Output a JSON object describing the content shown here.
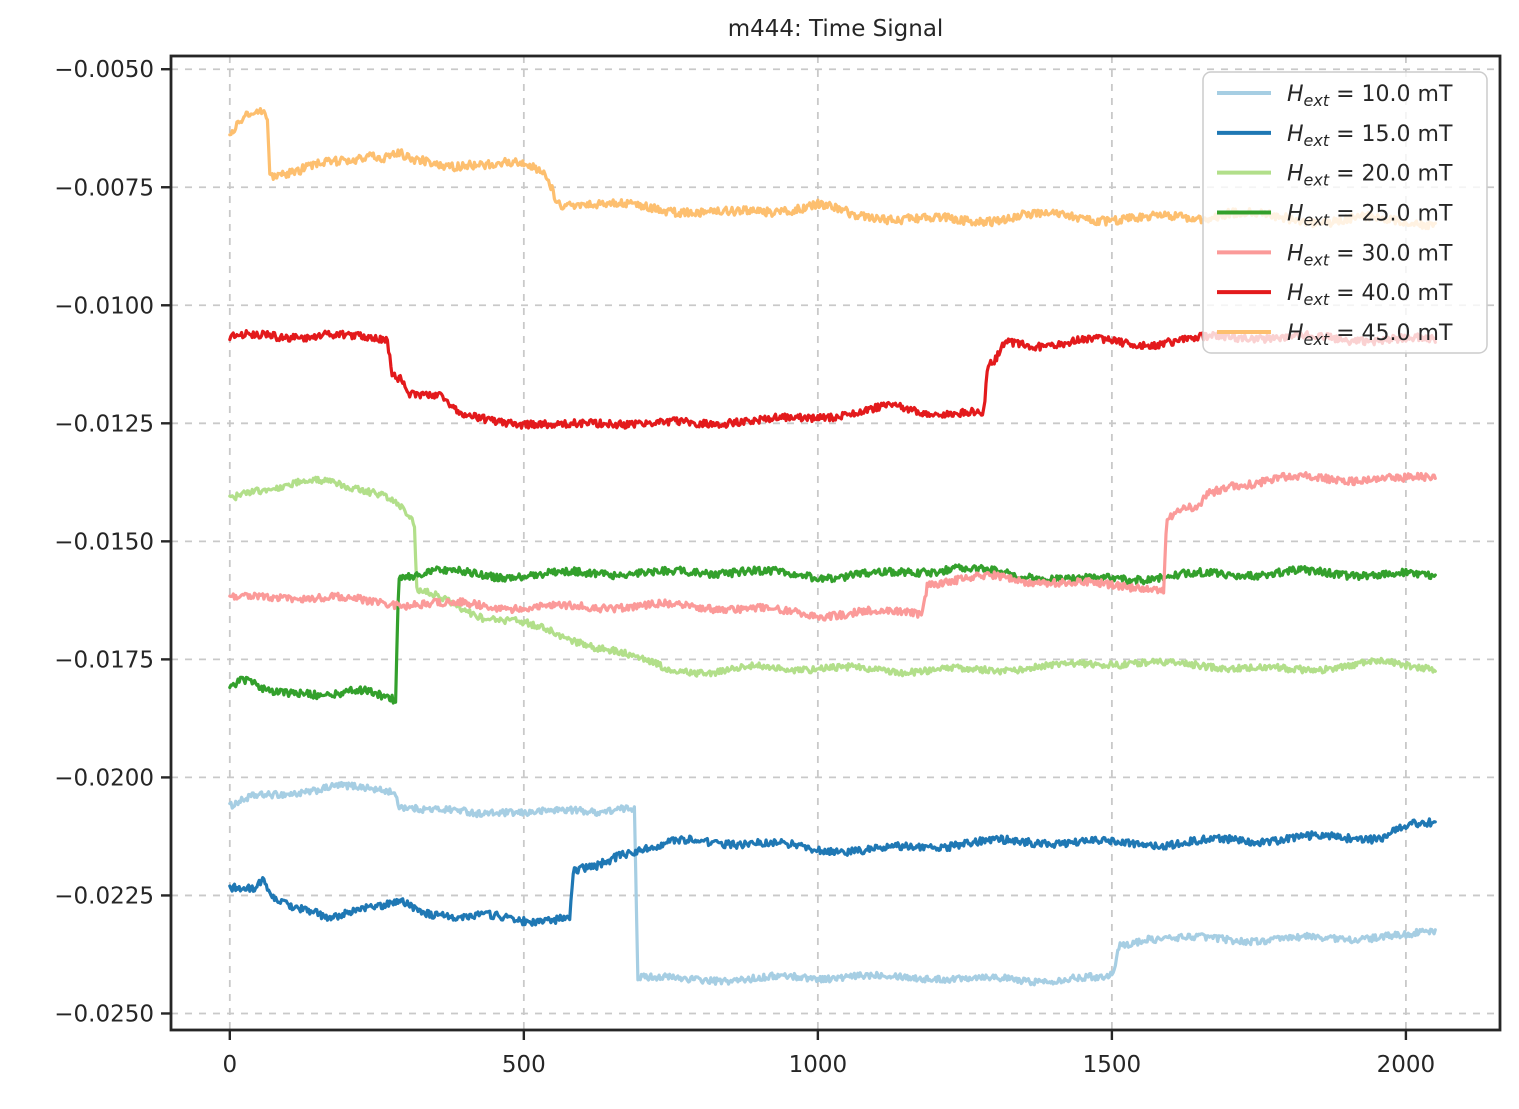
{
  "title": "m444: Time Signal",
  "chart_data": {
    "type": "line",
    "title": "m444: Time Signal",
    "xlabel": "",
    "ylabel": "",
    "xlim": [
      -100,
      2160
    ],
    "ylim": [
      -0.02535,
      -0.00472
    ],
    "x_ticks": [
      0,
      500,
      1000,
      1500,
      2000
    ],
    "x_tick_labels": [
      "0",
      "500",
      "1000",
      "1500",
      "2000"
    ],
    "y_ticks": [
      -0.005,
      -0.0075,
      -0.01,
      -0.0125,
      -0.015,
      -0.0175,
      -0.02,
      -0.0225,
      -0.025
    ],
    "y_tick_labels": [
      "−0.0050",
      "−0.0075",
      "−0.0100",
      "−0.0125",
      "−0.0150",
      "−0.0175",
      "−0.0200",
      "−0.0225",
      "−0.0250"
    ],
    "grid": true,
    "grid_style": "dashed",
    "grid_color": "#c9c9c9",
    "spine_color": "#262626",
    "legend": {
      "position": "upper right",
      "background_opacity": 0.8,
      "border_color": "#cccccc"
    },
    "series": [
      {
        "label": "H_ext = 10.0 mT",
        "legend_parts": {
          "symbol": "H",
          "subscript": "ext",
          "suffix": " = 10.0 mT"
        },
        "color": "#a6cee3",
        "noise_amp": 7e-05,
        "anchors": [
          [
            0,
            -0.0206
          ],
          [
            40,
            -0.0204
          ],
          [
            100,
            -0.0203
          ],
          [
            180,
            -0.0202
          ],
          [
            250,
            -0.0203
          ],
          [
            278,
            -0.0203
          ],
          [
            288,
            -0.0206
          ],
          [
            340,
            -0.0207
          ],
          [
            420,
            -0.0208
          ],
          [
            470,
            -0.0207
          ],
          [
            560,
            -0.0207
          ],
          [
            620,
            -0.0207
          ],
          [
            665,
            -0.0206
          ],
          [
            688,
            -0.0206
          ],
          [
            694,
            -0.0242
          ],
          [
            760,
            -0.0243
          ],
          [
            900,
            -0.0243
          ],
          [
            1050,
            -0.0242
          ],
          [
            1200,
            -0.0242
          ],
          [
            1350,
            -0.0243
          ],
          [
            1480,
            -0.0243
          ],
          [
            1503,
            -0.0242
          ],
          [
            1512,
            -0.0236
          ],
          [
            1560,
            -0.0234
          ],
          [
            1700,
            -0.0234
          ],
          [
            1850,
            -0.0234
          ],
          [
            2000,
            -0.0234
          ],
          [
            2050,
            -0.0233
          ]
        ]
      },
      {
        "label": "H_ext = 15.0 mT",
        "legend_parts": {
          "symbol": "H",
          "subscript": "ext",
          "suffix": " = 15.0 mT"
        },
        "color": "#1f78b4",
        "noise_amp": 8e-05,
        "anchors": [
          [
            0,
            -0.0223
          ],
          [
            40,
            -0.0224
          ],
          [
            55,
            -0.0222
          ],
          [
            75,
            -0.0226
          ],
          [
            100,
            -0.0227
          ],
          [
            140,
            -0.0228
          ],
          [
            170,
            -0.023
          ],
          [
            210,
            -0.0229
          ],
          [
            255,
            -0.0228
          ],
          [
            290,
            -0.0226
          ],
          [
            310,
            -0.0227
          ],
          [
            345,
            -0.0229
          ],
          [
            395,
            -0.023
          ],
          [
            430,
            -0.0229
          ],
          [
            470,
            -0.0229
          ],
          [
            520,
            -0.023
          ],
          [
            578,
            -0.023
          ],
          [
            585,
            -0.022
          ],
          [
            620,
            -0.0219
          ],
          [
            665,
            -0.0216
          ],
          [
            710,
            -0.0215
          ],
          [
            770,
            -0.0214
          ],
          [
            900,
            -0.0214
          ],
          [
            1000,
            -0.0215
          ],
          [
            1100,
            -0.0215
          ],
          [
            1250,
            -0.0214
          ],
          [
            1400,
            -0.0214
          ],
          [
            1550,
            -0.0214
          ],
          [
            1700,
            -0.0213
          ],
          [
            1850,
            -0.0213
          ],
          [
            1960,
            -0.0213
          ],
          [
            1972,
            -0.0212
          ],
          [
            1985,
            -0.0211
          ],
          [
            2050,
            -0.021
          ]
        ]
      },
      {
        "label": "H_ext = 20.0 mT",
        "legend_parts": {
          "symbol": "H",
          "subscript": "ext",
          "suffix": " = 20.0 mT"
        },
        "color": "#b2df8a",
        "noise_amp": 7e-05,
        "anchors": [
          [
            0,
            -0.0141
          ],
          [
            35,
            -0.0139
          ],
          [
            80,
            -0.0138
          ],
          [
            130,
            -0.0137
          ],
          [
            175,
            -0.0138
          ],
          [
            225,
            -0.0139
          ],
          [
            262,
            -0.014
          ],
          [
            292,
            -0.0143
          ],
          [
            308,
            -0.0146
          ],
          [
            314,
            -0.0147
          ],
          [
            318,
            -0.0161
          ],
          [
            350,
            -0.0162
          ],
          [
            390,
            -0.0164
          ],
          [
            430,
            -0.0166
          ],
          [
            490,
            -0.0167
          ],
          [
            545,
            -0.0169
          ],
          [
            600,
            -0.0171
          ],
          [
            655,
            -0.0173
          ],
          [
            700,
            -0.0175
          ],
          [
            745,
            -0.0177
          ],
          [
            820,
            -0.0178
          ],
          [
            900,
            -0.0177
          ],
          [
            1050,
            -0.0177
          ],
          [
            1200,
            -0.0177
          ],
          [
            1350,
            -0.0177
          ],
          [
            1500,
            -0.0176
          ],
          [
            1650,
            -0.0176
          ],
          [
            1800,
            -0.0177
          ],
          [
            1950,
            -0.0176
          ],
          [
            2050,
            -0.0177
          ]
        ]
      },
      {
        "label": "H_ext = 25.0 mT",
        "legend_parts": {
          "symbol": "H",
          "subscript": "ext",
          "suffix": " = 25.0 mT"
        },
        "color": "#33a02c",
        "noise_amp": 8e-05,
        "anchors": [
          [
            0,
            -0.0181
          ],
          [
            25,
            -0.018
          ],
          [
            60,
            -0.0182
          ],
          [
            120,
            -0.0182
          ],
          [
            170,
            -0.0183
          ],
          [
            230,
            -0.0182
          ],
          [
            282,
            -0.0183
          ],
          [
            287,
            -0.0157
          ],
          [
            350,
            -0.0156
          ],
          [
            450,
            -0.0157
          ],
          [
            600,
            -0.0157
          ],
          [
            750,
            -0.0157
          ],
          [
            870,
            -0.0156
          ],
          [
            1000,
            -0.0157
          ],
          [
            1120,
            -0.0157
          ],
          [
            1230,
            -0.0156
          ],
          [
            1300,
            -0.0157
          ],
          [
            1450,
            -0.0158
          ],
          [
            1600,
            -0.0157
          ],
          [
            1750,
            -0.0157
          ],
          [
            1900,
            -0.0157
          ],
          [
            2050,
            -0.0157
          ]
        ]
      },
      {
        "label": "H_ext = 30.0 mT",
        "legend_parts": {
          "symbol": "H",
          "subscript": "ext",
          "suffix": " = 30.0 mT"
        },
        "color": "#fb9a99",
        "noise_amp": 8e-05,
        "anchors": [
          [
            0,
            -0.0162
          ],
          [
            120,
            -0.0162
          ],
          [
            250,
            -0.0163
          ],
          [
            400,
            -0.0163
          ],
          [
            550,
            -0.0164
          ],
          [
            700,
            -0.0164
          ],
          [
            850,
            -0.0164
          ],
          [
            1000,
            -0.0165
          ],
          [
            1120,
            -0.0165
          ],
          [
            1178,
            -0.0165
          ],
          [
            1186,
            -0.0159
          ],
          [
            1300,
            -0.0158
          ],
          [
            1450,
            -0.0159
          ],
          [
            1560,
            -0.0159
          ],
          [
            1588,
            -0.016
          ],
          [
            1593,
            -0.0145
          ],
          [
            1620,
            -0.0143
          ],
          [
            1645,
            -0.0143
          ],
          [
            1665,
            -0.014
          ],
          [
            1700,
            -0.0138
          ],
          [
            1780,
            -0.0137
          ],
          [
            1900,
            -0.0137
          ],
          [
            2000,
            -0.0137
          ],
          [
            2050,
            -0.0136
          ]
        ]
      },
      {
        "label": "H_ext = 40.0 mT",
        "legend_parts": {
          "symbol": "H",
          "subscript": "ext",
          "suffix": " = 40.0 mT"
        },
        "color": "#e31a1c",
        "noise_amp": 8e-05,
        "anchors": [
          [
            0,
            -0.0107
          ],
          [
            90,
            -0.0107
          ],
          [
            160,
            -0.0106
          ],
          [
            230,
            -0.0107
          ],
          [
            268,
            -0.0107
          ],
          [
            276,
            -0.0114
          ],
          [
            292,
            -0.0115
          ],
          [
            302,
            -0.0118
          ],
          [
            330,
            -0.0118
          ],
          [
            358,
            -0.0119
          ],
          [
            372,
            -0.0121
          ],
          [
            388,
            -0.0123
          ],
          [
            420,
            -0.0124
          ],
          [
            500,
            -0.0125
          ],
          [
            570,
            -0.0126
          ],
          [
            650,
            -0.0125
          ],
          [
            780,
            -0.0125
          ],
          [
            860,
            -0.0124
          ],
          [
            950,
            -0.0124
          ],
          [
            1050,
            -0.0123
          ],
          [
            1130,
            -0.0122
          ],
          [
            1200,
            -0.0123
          ],
          [
            1282,
            -0.0123
          ],
          [
            1289,
            -0.0113
          ],
          [
            1302,
            -0.0112
          ],
          [
            1310,
            -0.011
          ],
          [
            1318,
            -0.0108
          ],
          [
            1380,
            -0.0108
          ],
          [
            1450,
            -0.0107
          ],
          [
            1550,
            -0.0108
          ],
          [
            1700,
            -0.0107
          ],
          [
            1850,
            -0.0107
          ],
          [
            2000,
            -0.0107
          ],
          [
            2050,
            -0.0107
          ]
        ]
      },
      {
        "label": "H_ext = 45.0 mT",
        "legend_parts": {
          "symbol": "H",
          "subscript": "ext",
          "suffix": " = 45.0 mT"
        },
        "color": "#fdbf6f",
        "noise_amp": 9e-05,
        "anchors": [
          [
            0,
            -0.0064
          ],
          [
            12,
            -0.0061
          ],
          [
            28,
            -0.0059
          ],
          [
            55,
            -0.0058
          ],
          [
            64,
            -0.0059
          ],
          [
            68,
            -0.0072
          ],
          [
            110,
            -0.0072
          ],
          [
            155,
            -0.007
          ],
          [
            205,
            -0.0069
          ],
          [
            235,
            -0.0068
          ],
          [
            262,
            -0.0069
          ],
          [
            282,
            -0.0068
          ],
          [
            310,
            -0.007
          ],
          [
            360,
            -0.0071
          ],
          [
            410,
            -0.007
          ],
          [
            470,
            -0.007
          ],
          [
            520,
            -0.0071
          ],
          [
            538,
            -0.0072
          ],
          [
            558,
            -0.0078
          ],
          [
            620,
            -0.0078
          ],
          [
            700,
            -0.0079
          ],
          [
            780,
            -0.008
          ],
          [
            860,
            -0.0081
          ],
          [
            940,
            -0.008
          ],
          [
            1000,
            -0.0079
          ],
          [
            1060,
            -0.0081
          ],
          [
            1150,
            -0.0081
          ],
          [
            1250,
            -0.0082
          ],
          [
            1350,
            -0.0081
          ],
          [
            1450,
            -0.0082
          ],
          [
            1550,
            -0.0082
          ],
          [
            1650,
            -0.0081
          ],
          [
            1700,
            -0.008
          ],
          [
            1780,
            -0.0081
          ],
          [
            1870,
            -0.0082
          ],
          [
            1950,
            -0.0082
          ],
          [
            2050,
            -0.0083
          ]
        ]
      }
    ]
  }
}
